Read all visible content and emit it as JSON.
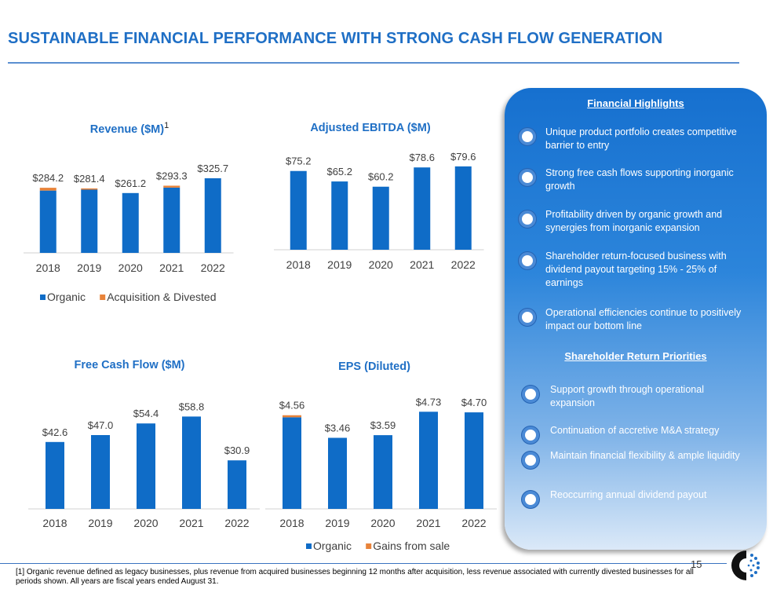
{
  "page": {
    "title": "SUSTAINABLE FINANCIAL PERFORMANCE WITH STRONG CASH FLOW GENERATION",
    "page_number": "15",
    "footnote": "[1] Organic revenue defined as legacy businesses, plus revenue from acquired businesses beginning 12 months after acquisition, less revenue associated with currently divested businesses for all periods shown. All years are fiscal years ended August 31."
  },
  "colors": {
    "primary": "#0f6cc7",
    "secondary": "#e8833a",
    "title": "#1f6fc5"
  },
  "panel": {
    "heading1": "Financial Highlights",
    "highlights": [
      "Unique product portfolio creates competitive barrier to entry",
      "Strong free cash flows supporting inorganic growth",
      "Profitability driven by organic growth and synergies from inorganic expansion",
      "Shareholder return-focused business with dividend payout targeting 15% - 25% of earnings",
      "Operational efficiencies continue to positively impact our bottom line"
    ],
    "heading2": "Shareholder Return Priorities",
    "priorities": [
      "Support growth through operational expansion",
      "Continuation of accretive M&A strategy",
      "Maintain financial flexibility & ample liquidity",
      "Reoccurring annual dividend payout"
    ]
  },
  "chart_data": [
    {
      "id": "revenue",
      "type": "bar",
      "stacked": true,
      "title": "Revenue ($M)",
      "title_superscript": "1",
      "categories": [
        "2018",
        "2019",
        "2020",
        "2021",
        "2022"
      ],
      "series": [
        {
          "name": "Organic",
          "values": [
            272.0,
            276.0,
            261.2,
            285.0,
            325.7
          ]
        },
        {
          "name": "Acquisition & Divested",
          "values": [
            12.2,
            5.4,
            0.0,
            8.3,
            0.0
          ]
        }
      ],
      "labels": [
        "$284.2",
        "$281.4",
        "$261.2",
        "$293.3",
        "$325.7"
      ],
      "ylim": [
        0,
        360
      ],
      "legend": "bottom"
    },
    {
      "id": "ebitda",
      "type": "bar",
      "title": "Adjusted EBITDA ($M)",
      "categories": [
        "2018",
        "2019",
        "2020",
        "2021",
        "2022"
      ],
      "series": [
        {
          "name": "Adjusted EBITDA",
          "values": [
            75.2,
            65.2,
            60.2,
            78.6,
            79.6
          ]
        }
      ],
      "labels": [
        "$75.2",
        "$65.2",
        "$60.2",
        "$78.6",
        "$79.6"
      ],
      "ylim": [
        0,
        90
      ]
    },
    {
      "id": "fcf",
      "type": "bar",
      "title": "Free Cash Flow ($M)",
      "categories": [
        "2018",
        "2019",
        "2020",
        "2021",
        "2022"
      ],
      "series": [
        {
          "name": "Free Cash Flow",
          "values": [
            42.6,
            47.0,
            54.4,
            58.8,
            30.9
          ]
        }
      ],
      "labels": [
        "$42.6",
        "$47.0",
        "$54.4",
        "$58.8",
        "$30.9"
      ],
      "ylim": [
        0,
        70
      ]
    },
    {
      "id": "eps",
      "type": "bar",
      "stacked": true,
      "title": "EPS (Diluted)",
      "categories": [
        "2018",
        "2019",
        "2020",
        "2021",
        "2022"
      ],
      "series": [
        {
          "name": "Organic",
          "values": [
            4.46,
            3.46,
            3.59,
            4.73,
            4.7
          ]
        },
        {
          "name": "Gains from sale",
          "values": [
            0.1,
            0.0,
            0.0,
            0.0,
            0.0
          ]
        }
      ],
      "labels": [
        "$4.56",
        "$3.46",
        "$3.59",
        "$4.73",
        "$4.70"
      ],
      "ylim": [
        0,
        5.2
      ],
      "legend": "bottom"
    }
  ]
}
